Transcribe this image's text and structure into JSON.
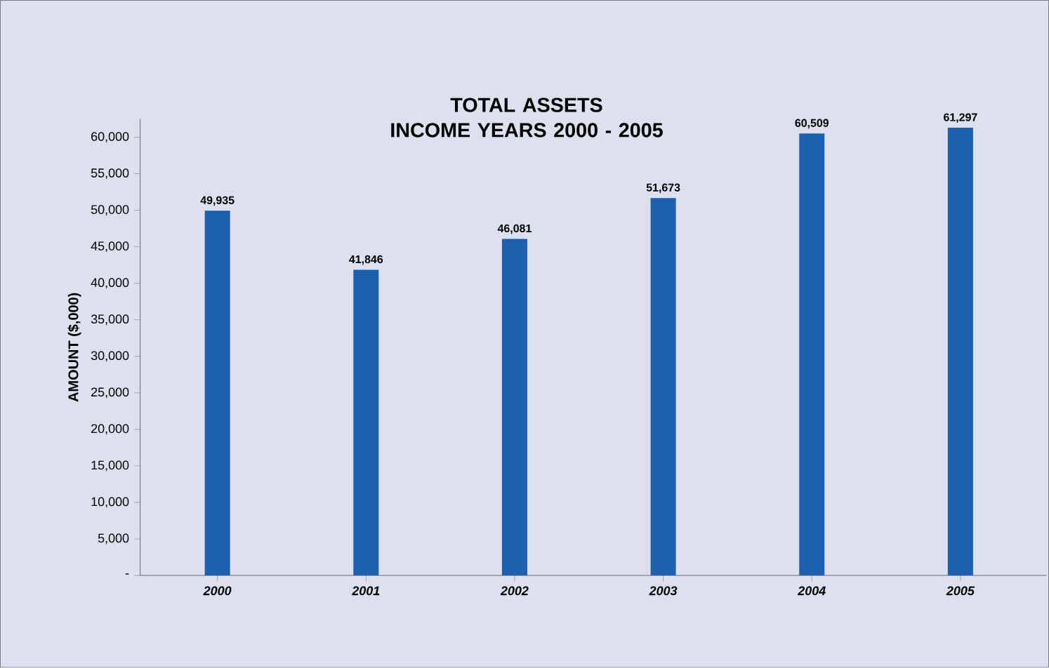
{
  "chart_data": {
    "type": "bar",
    "title": "TOTAL ASSETS\nINCOME YEARS 2000 - 2005",
    "ylabel": "AMOUNT ($,000)",
    "categories": [
      "2000",
      "2001",
      "2002",
      "2003",
      "2004",
      "2005"
    ],
    "values": [
      49935,
      41846,
      46081,
      51673,
      60509,
      61297
    ],
    "value_labels": [
      "49,935",
      "41,846",
      "46,081",
      "51,673",
      "60,509",
      "61,297"
    ],
    "color": "#1e5fb0",
    "ylim": [
      0,
      62500
    ],
    "yticks": [
      {
        "value": 0,
        "label": "-"
      },
      {
        "value": 5000,
        "label": "5,000"
      },
      {
        "value": 10000,
        "label": "10,000"
      },
      {
        "value": 15000,
        "label": "15,000"
      },
      {
        "value": 20000,
        "label": "20,000"
      },
      {
        "value": 25000,
        "label": "25,000"
      },
      {
        "value": 30000,
        "label": "30,000"
      },
      {
        "value": 35000,
        "label": "35,000"
      },
      {
        "value": 40000,
        "label": "40,000"
      },
      {
        "value": 45000,
        "label": "45,000"
      },
      {
        "value": 50000,
        "label": "50,000"
      },
      {
        "value": 55000,
        "label": "55,000"
      },
      {
        "value": 60000,
        "label": "60,000"
      }
    ],
    "grid": false
  }
}
